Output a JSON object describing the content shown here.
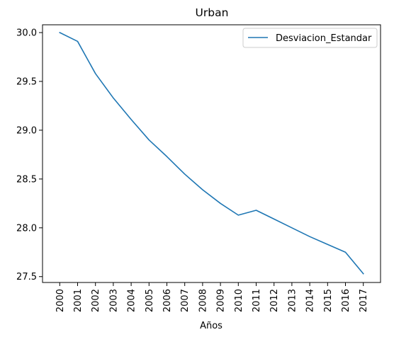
{
  "chart_data": {
    "type": "line",
    "title": "Urban",
    "xlabel": "Años",
    "ylabel": "",
    "categories": [
      "2000",
      "2001",
      "2002",
      "2003",
      "2004",
      "2005",
      "2006",
      "2007",
      "2008",
      "2009",
      "2010",
      "2011",
      "2012",
      "2013",
      "2014",
      "2015",
      "2016",
      "2017"
    ],
    "series": [
      {
        "name": "Desviacion_Estandar",
        "color": "#1f77b4",
        "values": [
          30.0,
          29.91,
          29.58,
          29.33,
          29.11,
          28.9,
          28.73,
          28.55,
          28.39,
          28.25,
          28.13,
          28.18,
          28.09,
          28.0,
          27.91,
          27.83,
          27.75,
          27.53
        ]
      }
    ],
    "ylim": [
      27.44,
      30.08
    ],
    "yticks": [
      "27.5",
      "28.0",
      "28.5",
      "29.0",
      "29.5",
      "30.0"
    ],
    "grid": false,
    "legend_position": "top-right"
  }
}
